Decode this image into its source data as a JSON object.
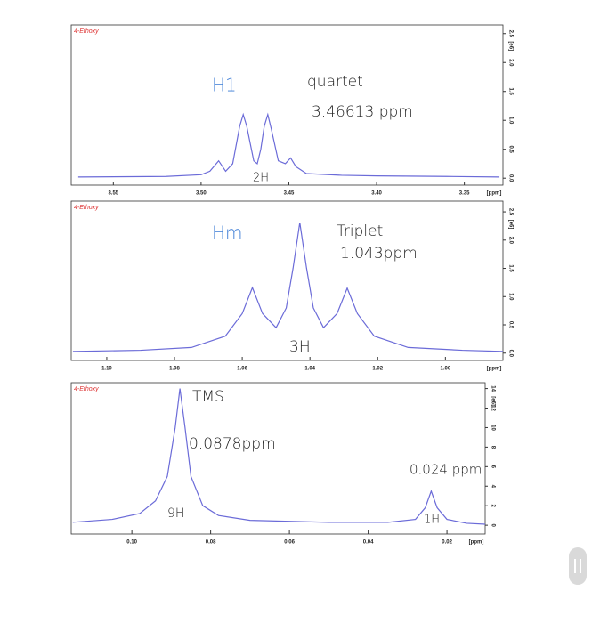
{
  "chart_data": [
    {
      "type": "line",
      "title": "4-Ethoxy",
      "x_label": "[ppm]",
      "y_label": "[e6]",
      "color": "#6b6bd8",
      "annotations": [
        "H1",
        "quartet",
        "3.46613 ppm",
        "2H"
      ],
      "x": [
        3.57,
        3.52,
        3.5,
        3.495,
        3.49,
        3.486,
        3.482,
        3.478,
        3.476,
        3.474,
        3.47,
        3.468,
        3.466,
        3.464,
        3.462,
        3.46,
        3.456,
        3.452,
        3.449,
        3.446,
        3.44,
        3.42,
        3.4,
        3.36,
        3.33
      ],
      "values": [
        0.02,
        0.03,
        0.06,
        0.12,
        0.3,
        0.12,
        0.25,
        0.9,
        1.1,
        0.9,
        0.3,
        0.25,
        0.5,
        0.9,
        1.1,
        0.85,
        0.3,
        0.25,
        0.35,
        0.2,
        0.08,
        0.05,
        0.04,
        0.03,
        0.02
      ],
      "xlim": [
        3.574,
        3.328
      ],
      "ylim": [
        -0.12,
        2.65
      ],
      "xticks": [
        3.55,
        {
          "value": 3.5,
          "label": "3.50"
        },
        3.45,
        {
          "value": 3.4,
          "label": "3.40"
        },
        3.35
      ],
      "yticks": [
        {
          "value": 0,
          "label": "0.0"
        },
        0.5,
        {
          "value": 1,
          "label": "1.0"
        },
        1.5,
        {
          "value": 2,
          "label": "2.0"
        },
        2.5
      ]
    },
    {
      "type": "line",
      "title": "4-Ethoxy",
      "x_label": "[ppm]",
      "y_label": "[e6]",
      "color": "#6b6bd8",
      "annotations": [
        "Hm",
        "Triplet",
        "1.043ppm",
        "3H"
      ],
      "x": [
        1.11,
        1.09,
        1.075,
        1.065,
        1.06,
        1.057,
        1.054,
        1.05,
        1.047,
        1.045,
        1.043,
        1.041,
        1.039,
        1.036,
        1.032,
        1.029,
        1.026,
        1.021,
        1.011,
        0.995,
        0.983
      ],
      "values": [
        0.03,
        0.05,
        0.1,
        0.3,
        0.7,
        1.16,
        0.7,
        0.45,
        0.8,
        1.5,
        2.31,
        1.5,
        0.8,
        0.45,
        0.7,
        1.15,
        0.7,
        0.3,
        0.1,
        0.05,
        0.03
      ],
      "xlim": [
        1.1105,
        0.983
      ],
      "ylim": [
        -0.13,
        2.69
      ],
      "xticks": [
        {
          "value": 1.1,
          "label": "1.10"
        },
        1.08,
        1.06,
        1.04,
        1.02,
        {
          "value": 1,
          "label": "1.00"
        }
      ],
      "yticks": [
        {
          "value": 0,
          "label": "0.0"
        },
        0.5,
        {
          "value": 1,
          "label": "1.0"
        },
        1.5,
        {
          "value": 2,
          "label": "2.0"
        },
        2.5
      ]
    },
    {
      "type": "line",
      "title": "4-Ethoxy",
      "x_label": "[ppm]",
      "y_label": "[e6]",
      "color": "#6b6bd8",
      "annotations": [
        "TMS",
        "0.0878ppm",
        "0.024 ppm",
        "9H",
        "1H"
      ],
      "x": [
        0.115,
        0.105,
        0.098,
        0.094,
        0.091,
        0.089,
        0.0878,
        0.0865,
        0.085,
        0.082,
        0.078,
        0.07,
        0.05,
        0.035,
        0.028,
        0.0255,
        0.024,
        0.0225,
        0.02,
        0.015,
        0.0103
      ],
      "values": [
        0.3,
        0.6,
        1.2,
        2.5,
        5,
        10,
        14,
        10,
        5,
        2.0,
        1.0,
        0.5,
        0.3,
        0.3,
        0.6,
        1.8,
        3.5,
        1.8,
        0.6,
        0.2,
        0.1
      ],
      "xlim": [
        0.1154,
        0.0103
      ],
      "ylim": [
        -0.9,
        14.6
      ],
      "xticks": [
        {
          "value": 0.1,
          "label": "0.10"
        },
        0.08,
        0.06,
        0.04,
        0.02
      ],
      "yticks": [
        0,
        2,
        4,
        6,
        8,
        10,
        12,
        14
      ]
    }
  ]
}
